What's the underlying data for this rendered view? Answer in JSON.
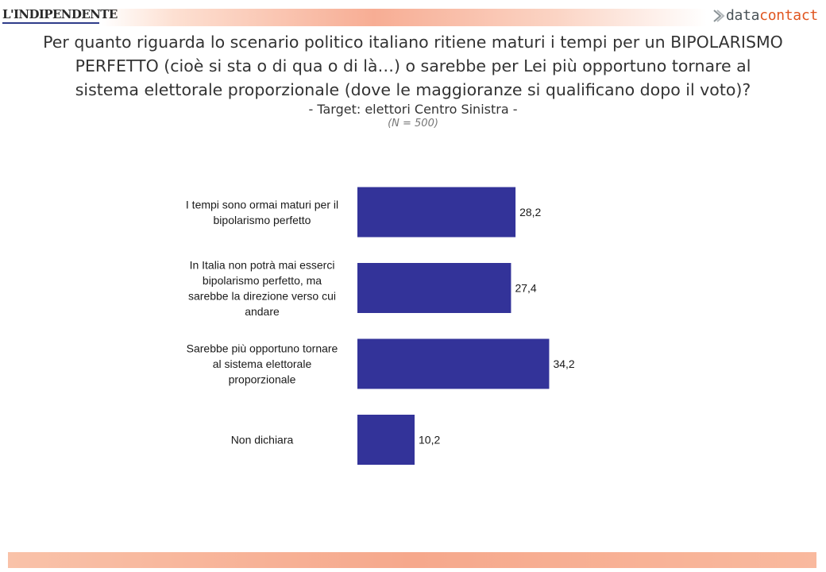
{
  "header": {
    "left_logo_text": "L'INDIPENDENTE",
    "right_logo_part1": "data",
    "right_logo_part2": "contact"
  },
  "title_lines": [
    "Per quanto riguarda lo scenario politico italiano ritiene maturi i tempi per un BIPOLARISMO",
    "PERFETTO (cioè si sta o di qua o di là…) o sarebbe per Lei più opportuno tornare al",
    "sistema elettorale proporzionale (dove le maggioranze si qualificano dopo il voto)?"
  ],
  "subtitle": "- Target: elettori Centro Sinistra -",
  "note": "(N = 500)",
  "chart_data": {
    "type": "bar",
    "orientation": "horizontal",
    "categories": [
      "I tempi sono ormai maturi per il bipolarismo perfetto",
      "In Italia non potrà mai esserci bipolarismo perfetto, ma sarebbe la direzione verso cui andare",
      "Sarebbe più opportuno tornare al sistema elettorale proporzionale",
      "Non dichiara"
    ],
    "category_label_lines": [
      [
        "I tempi sono ormai maturi per il",
        "bipolarismo perfetto"
      ],
      [
        "In Italia non potrà mai esserci",
        "bipolarismo perfetto, ma",
        "sarebbe la direzione verso cui",
        "andare"
      ],
      [
        "Sarebbe più opportuno tornare",
        "al sistema elettorale",
        "proporzionale"
      ],
      [
        "Non dichiara"
      ]
    ],
    "values": [
      28.2,
      27.4,
      34.2,
      10.2
    ],
    "value_labels": [
      "28,2",
      "27,4",
      "34,2",
      "10,2"
    ],
    "bar_color": "#333399",
    "grid": false,
    "legend": "none"
  }
}
